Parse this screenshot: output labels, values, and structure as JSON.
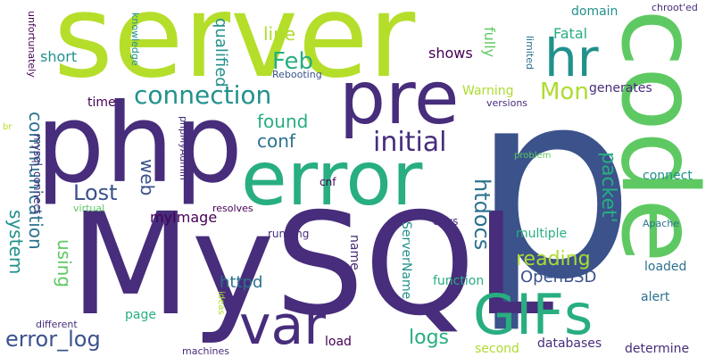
{
  "words": [
    "server",
    "p",
    "MySQL",
    "php",
    "error",
    "code",
    "pre",
    "hr",
    "var",
    "GIFs",
    "connection",
    "initial",
    "Mon",
    "Feb",
    "Lost",
    "found",
    "conf",
    "line",
    "communication",
    "system",
    "reading",
    "packet'",
    "htdocs",
    "error_log",
    "logs",
    "OpenBSD",
    "using",
    "web",
    "qualified",
    "shows",
    "short",
    "fully",
    "Fatal",
    "domain",
    "generates",
    "Warning",
    "myImage",
    "httpd",
    "multiple",
    "function",
    "alert",
    "loaded",
    "connect",
    "name",
    "ServerName",
    "page",
    "load",
    "second",
    "databases",
    "determine",
    "days",
    "running",
    "cnf",
    "resolves",
    "virtual",
    "Apache",
    "problem",
    "versions",
    "limited",
    "Rebooting",
    "chroot'ed",
    "br",
    "knowledge",
    "unfortunately",
    "mysql_connect",
    "time",
    "phpMyAdmin",
    "ideas",
    "machines",
    "different"
  ]
}
